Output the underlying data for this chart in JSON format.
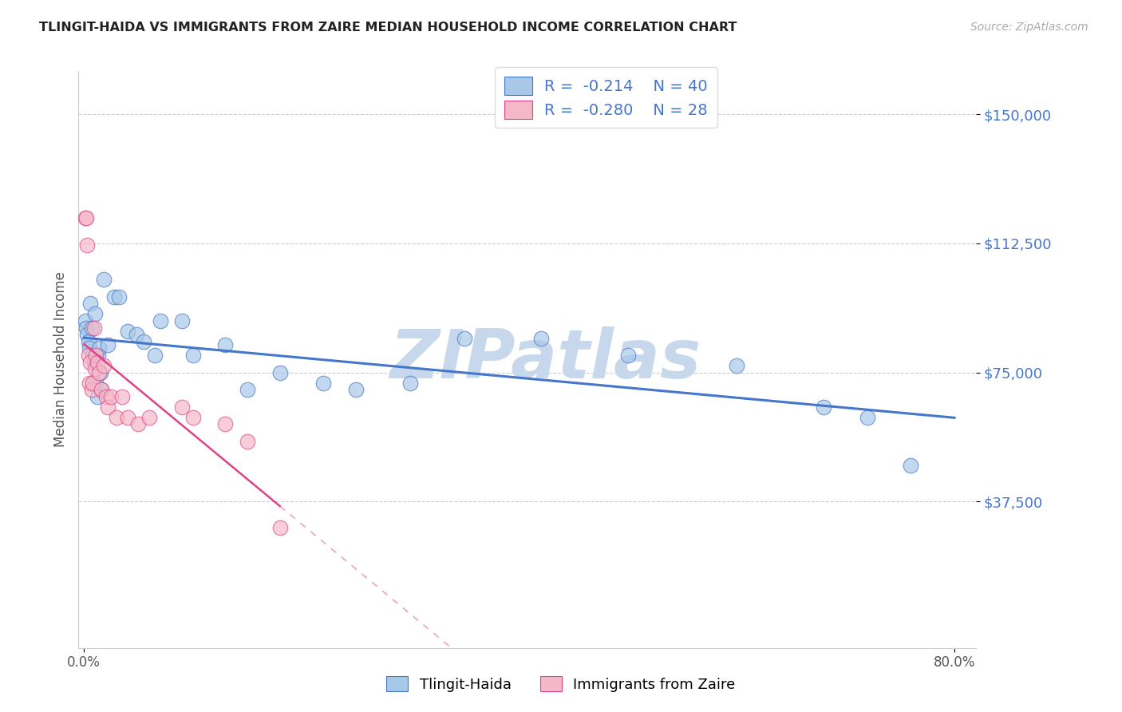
{
  "title": "TLINGIT-HAIDA VS IMMIGRANTS FROM ZAIRE MEDIAN HOUSEHOLD INCOME CORRELATION CHART",
  "source": "Source: ZipAtlas.com",
  "ylabel": "Median Household Income",
  "xlim": [
    -0.005,
    0.82
  ],
  "ylim": [
    -5000,
    162500
  ],
  "blue_color": "#A8C8E8",
  "pink_color": "#F5B8C8",
  "line_blue": "#4477CC",
  "line_pink": "#DD4488",
  "watermark": "ZIPatlas",
  "watermark_color": "#C8D8EC",
  "tlingit_x": [
    0.001,
    0.002,
    0.003,
    0.004,
    0.005,
    0.006,
    0.007,
    0.008,
    0.009,
    0.01,
    0.011,
    0.012,
    0.013,
    0.014,
    0.015,
    0.016,
    0.018,
    0.022,
    0.028,
    0.032,
    0.04,
    0.048,
    0.055,
    0.065,
    0.07,
    0.09,
    0.1,
    0.13,
    0.15,
    0.18,
    0.22,
    0.25,
    0.3,
    0.35,
    0.42,
    0.5,
    0.6,
    0.68,
    0.72,
    0.76
  ],
  "tlingit_y": [
    90000,
    88000,
    86000,
    84000,
    82000,
    95000,
    88000,
    80000,
    78000,
    92000,
    72000,
    68000,
    80000,
    82000,
    75000,
    70000,
    102000,
    83000,
    97000,
    97000,
    87000,
    86000,
    84000,
    80000,
    90000,
    90000,
    80000,
    83000,
    70000,
    75000,
    72000,
    70000,
    72000,
    85000,
    85000,
    80000,
    77000,
    65000,
    62000,
    48000
  ],
  "zaire_x": [
    0.001,
    0.002,
    0.003,
    0.004,
    0.005,
    0.006,
    0.007,
    0.008,
    0.009,
    0.01,
    0.011,
    0.012,
    0.014,
    0.016,
    0.018,
    0.02,
    0.022,
    0.025,
    0.03,
    0.035,
    0.04,
    0.05,
    0.06,
    0.09,
    0.1,
    0.13,
    0.15,
    0.18
  ],
  "zaire_y": [
    120000,
    120000,
    112000,
    80000,
    72000,
    78000,
    70000,
    72000,
    88000,
    76000,
    80000,
    78000,
    75000,
    70000,
    77000,
    68000,
    65000,
    68000,
    62000,
    68000,
    62000,
    60000,
    62000,
    65000,
    62000,
    60000,
    55000,
    30000
  ]
}
